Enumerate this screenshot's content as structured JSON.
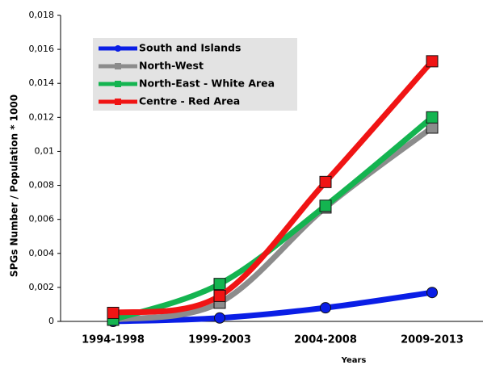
{
  "chart_data": {
    "type": "line",
    "x_label": "Years",
    "y_label": "SPGs Number / Population * 1000",
    "categories": [
      "1994-1998",
      "1999-2003",
      "2004-2008",
      "2009-2013"
    ],
    "series": [
      {
        "name": "South and Islands",
        "color": "#0a1ee6",
        "marker": "circle",
        "values": [
          0.0,
          0.0002,
          0.0008,
          0.0017
        ]
      },
      {
        "name": "North-West",
        "color": "#8c8c8c",
        "marker": "square",
        "values": [
          0.0001,
          0.0011,
          0.0067,
          0.0114
        ]
      },
      {
        "name": "North-East - White Area",
        "color": "#14b450",
        "marker": "square",
        "values": [
          0.0001,
          0.0022,
          0.0068,
          0.012
        ]
      },
      {
        "name": "Centre - Red Area",
        "color": "#f01414",
        "marker": "square",
        "values": [
          0.0005,
          0.0015,
          0.0082,
          0.0153
        ]
      }
    ],
    "ylim": [
      0,
      0.018
    ],
    "yticks": [
      0,
      {
        "value": 0.002,
        "label": "0,002"
      },
      {
        "value": 0.004,
        "label": "0,004"
      },
      {
        "value": 0.006,
        "label": "0,006"
      },
      {
        "value": 0.008,
        "label": "0,008"
      },
      {
        "value": 0.01,
        "label": "0,01"
      },
      {
        "value": 0.012,
        "label": "0,012"
      },
      {
        "value": 0.014,
        "label": "0,014"
      },
      {
        "value": 0.016,
        "label": "0,016"
      },
      {
        "value": 0.018,
        "label": "0,018"
      }
    ],
    "smooth": true,
    "legend": "upper left"
  }
}
